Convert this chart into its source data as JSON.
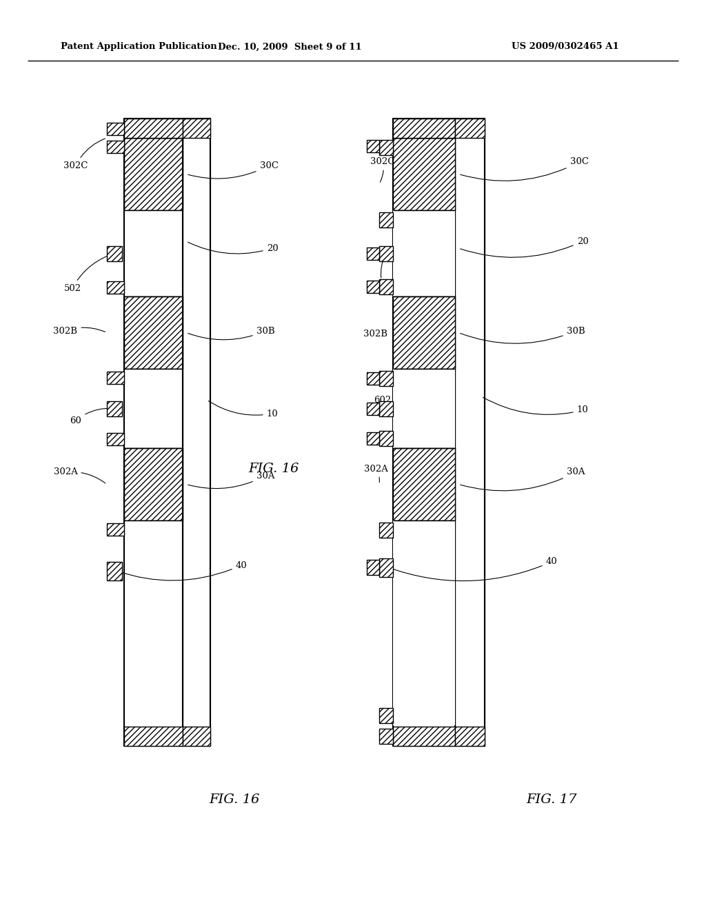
{
  "header_left": "Patent Application Publication",
  "header_mid": "Dec. 10, 2009  Sheet 9 of 11",
  "header_right": "US 2009/0302465 A1",
  "fig16_label": "FIG. 16",
  "fig17_label": "FIG. 17",
  "bg_color": "#ffffff"
}
